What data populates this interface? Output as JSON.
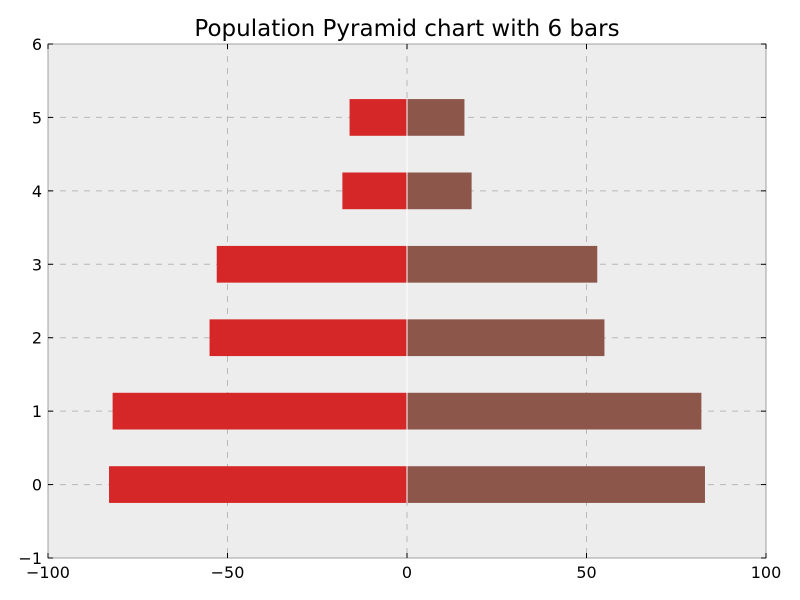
{
  "chart_data": {
    "type": "bar",
    "orientation": "horizontal",
    "title": "Population Pyramid chart with 6 bars",
    "xlabel": "",
    "ylabel": "",
    "categories": [
      0,
      1,
      2,
      3,
      4,
      5
    ],
    "series": [
      {
        "color": "#d62728",
        "values": [
          -83,
          -82,
          -55,
          -53,
          -18,
          -16
        ]
      },
      {
        "color": "#8c564b",
        "values": [
          83,
          82,
          55,
          53,
          18,
          16
        ]
      }
    ],
    "xlim": [
      -100,
      100
    ],
    "ylim": [
      -1,
      6
    ],
    "xticks": [
      -100,
      -50,
      0,
      50,
      100
    ],
    "xtick_labels": [
      "−100",
      "−50",
      "0",
      "50",
      "100"
    ],
    "yticks": [
      -1,
      0,
      1,
      2,
      3,
      4,
      5,
      6
    ],
    "ytick_labels": [
      "−1",
      "0",
      "1",
      "2",
      "3",
      "4",
      "5",
      "6"
    ],
    "grid": true,
    "plot_background": "#ededed",
    "legend": "none"
  }
}
